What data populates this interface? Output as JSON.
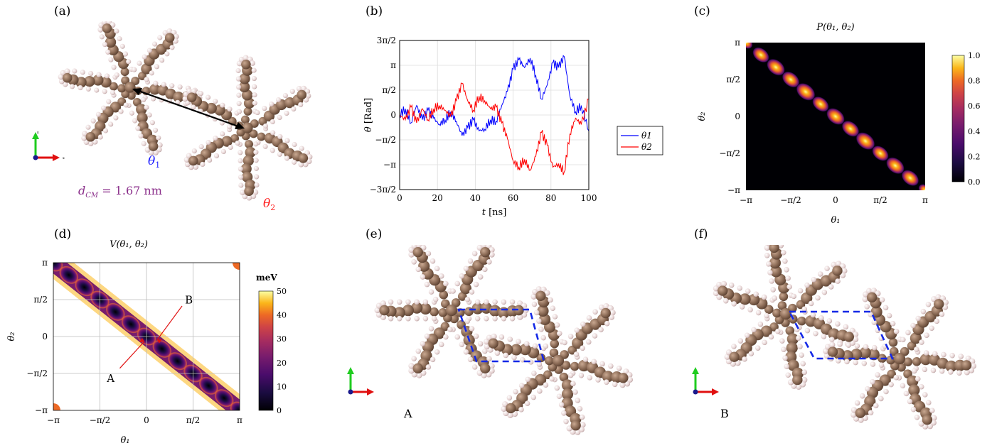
{
  "panels": {
    "a": {
      "label": "(a)",
      "theta1": "θ",
      "theta1_sub": "1",
      "theta2": "θ",
      "theta2_sub": "2",
      "dcm_label": "d",
      "dcm_sub": "CM",
      "dcm_value": " = 1.67 nm",
      "colors": {
        "theta1": "#1a1aff",
        "theta2": "#ff2020",
        "dcm": "#8b2f8b",
        "molecule": "#8a6a55",
        "hydrogen": "#e8d8d8"
      }
    },
    "b": {
      "label": "(b)",
      "legend": [
        "θ1",
        "θ2"
      ]
    },
    "c": {
      "label": "(c)",
      "title": "P(θ₁, θ₂)",
      "colorbar_ticks": [
        "1.0",
        "0.8",
        "0.6",
        "0.4",
        "0.2",
        "0.0"
      ]
    },
    "d": {
      "label": "(d)",
      "title": "V(θ₁, θ₂)",
      "colorbar_unit": "meV",
      "colorbar_ticks": [
        "50",
        "40",
        "30",
        "20",
        "10",
        "0"
      ],
      "point_a": "A",
      "point_b": "B"
    },
    "e": {
      "label": "(e)",
      "caption": "A"
    },
    "f": {
      "label": "(f)",
      "caption": "B"
    }
  },
  "chart_data": [
    {
      "type": "line",
      "panel": "b",
      "xlabel": "t [ns]",
      "ylabel": "θ [Rad]",
      "xlim": [
        0,
        100
      ],
      "ylim": [
        -4.712,
        4.712
      ],
      "x_ticks": [
        "0",
        "20",
        "40",
        "60",
        "80",
        "100"
      ],
      "y_ticks": [
        "3π/2",
        "π",
        "π/2",
        "0",
        "−π/2",
        "−π",
        "−3π/2"
      ],
      "grid": true,
      "legend_position": "outside-right",
      "series": [
        {
          "name": "θ1",
          "color": "#0000ff",
          "x": [
            0,
            3,
            6,
            9,
            12,
            15,
            18,
            21,
            24,
            27,
            30,
            33,
            36,
            39,
            42,
            45,
            48,
            51,
            54,
            57,
            60,
            63,
            66,
            69,
            72,
            75,
            78,
            81,
            84,
            87,
            90,
            93,
            96,
            100
          ],
          "y": [
            0.0,
            0.4,
            -0.5,
            0.6,
            -0.3,
            0.3,
            -0.2,
            -0.6,
            -0.3,
            0.2,
            -0.4,
            -1.3,
            -0.8,
            -0.3,
            -1.0,
            -0.9,
            -0.3,
            -0.4,
            0.6,
            1.5,
            2.9,
            3.5,
            3.0,
            3.6,
            2.5,
            1.0,
            1.9,
            3.3,
            3.0,
            3.7,
            1.2,
            0.2,
            0.6,
            -1.0
          ]
        },
        {
          "name": "θ2",
          "color": "#ff0000",
          "x": [
            0,
            3,
            6,
            9,
            12,
            15,
            18,
            21,
            24,
            27,
            30,
            33,
            36,
            39,
            42,
            45,
            48,
            51,
            54,
            57,
            60,
            63,
            66,
            69,
            72,
            75,
            78,
            81,
            84,
            87,
            90,
            93,
            96,
            100
          ],
          "y": [
            0.0,
            -0.3,
            0.5,
            -0.5,
            0.4,
            -0.3,
            0.4,
            0.6,
            0.3,
            -0.1,
            0.9,
            2.0,
            0.9,
            0.3,
            1.2,
            0.9,
            0.4,
            0.5,
            -0.5,
            -1.5,
            -2.9,
            -3.3,
            -2.8,
            -3.5,
            -2.6,
            -1.1,
            -1.9,
            -3.3,
            -3.1,
            -3.6,
            -1.2,
            -0.2,
            -0.6,
            1.0
          ]
        }
      ]
    },
    {
      "type": "heatmap",
      "panel": "c",
      "xlabel": "θ₁",
      "ylabel": "θ₂",
      "x_ticks": [
        "−π",
        "−π/2",
        "0",
        "π/2",
        "π"
      ],
      "y_ticks": [
        "π",
        "π/2",
        "0",
        "−π/2",
        "−π"
      ],
      "xlim": [
        -3.1416,
        3.1416
      ],
      "ylim": [
        -3.1416,
        3.1416
      ],
      "colorbar_range": [
        0,
        1
      ],
      "colormap": "inferno",
      "grid": false,
      "peaks_theta1": [
        -3.1416,
        -2.618,
        -2.094,
        -1.571,
        -1.047,
        -0.524,
        0,
        0.524,
        1.047,
        1.571,
        2.094,
        2.618,
        3.1416
      ],
      "peak_weights": [
        0.6,
        0.8,
        0.9,
        0.85,
        0.95,
        0.8,
        0.9,
        0.85,
        0.95,
        0.8,
        0.9,
        0.85,
        0.6
      ]
    },
    {
      "type": "heatmap",
      "panel": "d",
      "xlabel": "θ₁",
      "ylabel": "θ₂",
      "x_ticks": [
        "−π",
        "−π/2",
        "0",
        "π/2",
        "π"
      ],
      "y_ticks": [
        "π",
        "π/2",
        "0",
        "−π/2",
        "−π"
      ],
      "xlim": [
        -3.1416,
        3.1416
      ],
      "ylim": [
        -3.1416,
        3.1416
      ],
      "colorbar_range": [
        0,
        50
      ],
      "colormap": "inferno",
      "grid": true,
      "minima_theta1": [
        -3.1416,
        -2.618,
        -2.094,
        -1.571,
        -1.047,
        -0.524,
        0,
        0.524,
        1.047,
        1.571,
        2.094,
        2.618,
        3.1416
      ],
      "point_A": [
        0,
        0
      ],
      "point_B": [
        0.262,
        -0.262
      ]
    }
  ]
}
